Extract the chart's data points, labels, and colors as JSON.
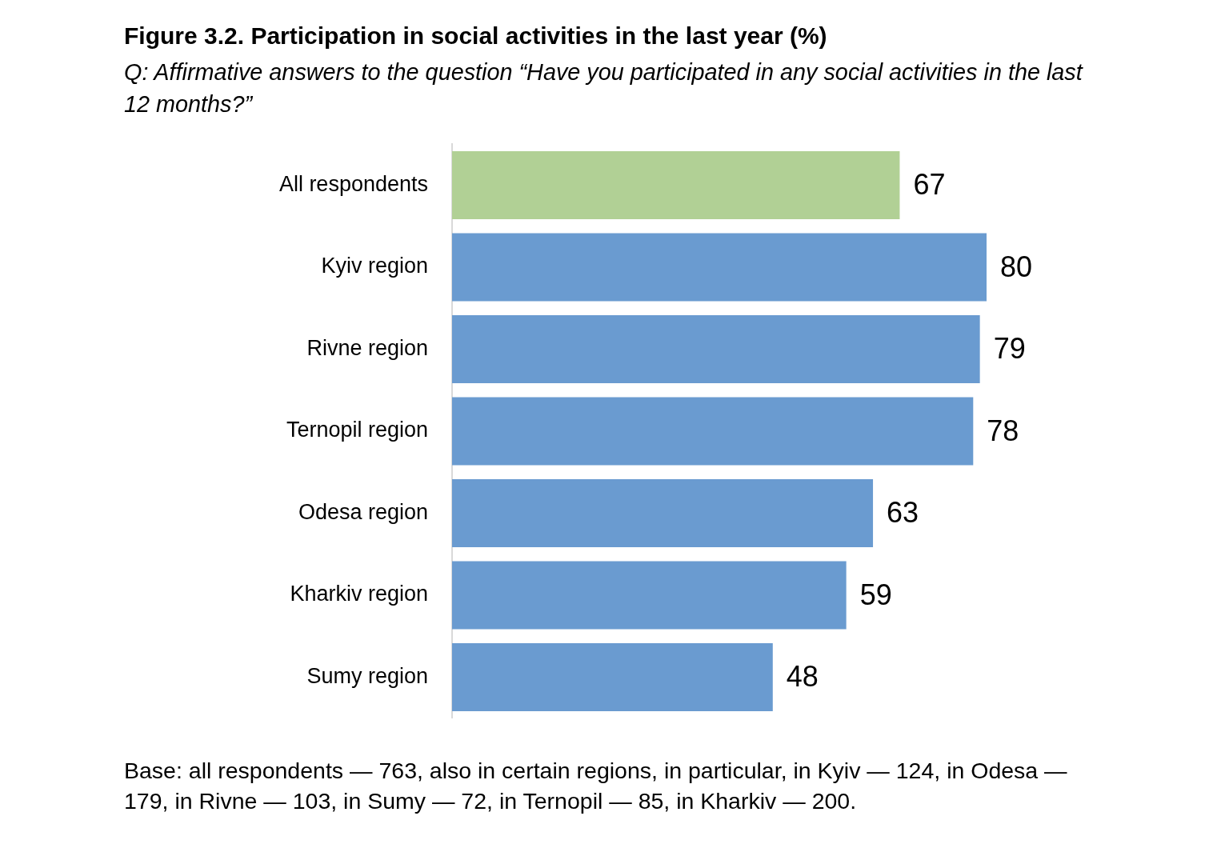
{
  "chart_data": {
    "type": "bar",
    "orientation": "horizontal",
    "title": "Figure 3.2. Participation in social activities in the last year (%)",
    "subtitle": "Q: Affirmative answers to the question “Have you participated in any social activities in the last 12 months?”",
    "categories": [
      "All respondents",
      "Kyiv region",
      "Rivne region",
      "Ternopil region",
      "Odesa region",
      "Kharkiv region",
      "Sumy region"
    ],
    "values": [
      67,
      80,
      79,
      78,
      63,
      59,
      48
    ],
    "colors": [
      "#b1d095",
      "#6a9bd0",
      "#6a9bd0",
      "#6a9bd0",
      "#6a9bd0",
      "#6a9bd0",
      "#6a9bd0"
    ],
    "data_labels": true,
    "grid": false,
    "legend": false,
    "tick_labels": "y",
    "annotations": [
      "Base: all respondents — 763, also in certain regions, in particular, in Kyiv — 124, in Odesa — 179, in Rivne — 103, in Sumy — 72, in Ternopil — 85, in Kharkiv — 200."
    ]
  }
}
